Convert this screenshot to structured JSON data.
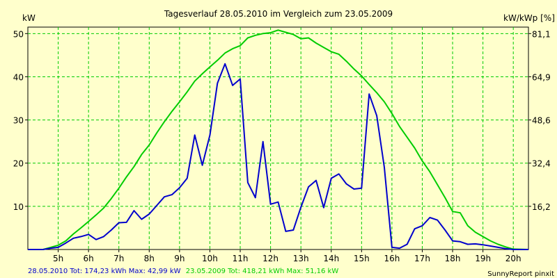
{
  "chart_data": {
    "type": "line",
    "title": "Tagesverlauf 28.05.2010 im Vergleich zum 23.05.2009",
    "ylabel_left": "kW",
    "ylabel_right": "kW/kWp [%]",
    "xlim": [
      4.0,
      20.5
    ],
    "ylim": [
      0,
      51.5
    ],
    "grid": true,
    "x_ticks": [
      "5h",
      "6h",
      "7h",
      "8h",
      "9h",
      "10h",
      "11h",
      "12h",
      "13h",
      "14h",
      "15h",
      "16h",
      "17h",
      "18h",
      "19h",
      "20h"
    ],
    "x_tick_values": [
      5,
      6,
      7,
      8,
      9,
      10,
      11,
      12,
      13,
      14,
      15,
      16,
      17,
      18,
      19,
      20
    ],
    "y_ticks_left": [
      "10",
      "20",
      "30",
      "40",
      "50"
    ],
    "y_tick_values_left": [
      10,
      20,
      30,
      40,
      50
    ],
    "y_ticks_right": [
      "16,2",
      "32,4",
      "48,6",
      "64,9",
      "81,1"
    ],
    "y_tick_values_right_kw": [
      10,
      20,
      30,
      40,
      50
    ],
    "series": [
      {
        "name": "28.05.2010",
        "color": "#0000CC",
        "x": [
          4.0,
          4.5,
          4.75,
          5.0,
          5.25,
          5.5,
          5.75,
          6.0,
          6.25,
          6.5,
          6.75,
          7.0,
          7.25,
          7.5,
          7.75,
          8.0,
          8.25,
          8.5,
          8.75,
          9.0,
          9.25,
          9.5,
          9.75,
          10.0,
          10.25,
          10.5,
          10.75,
          11.0,
          11.25,
          11.5,
          11.75,
          12.0,
          12.25,
          12.5,
          12.75,
          13.0,
          13.25,
          13.5,
          13.75,
          14.0,
          14.25,
          14.5,
          14.75,
          15.0,
          15.25,
          15.5,
          15.75,
          16.0,
          16.25,
          16.5,
          16.75,
          17.0,
          17.25,
          17.5,
          17.75,
          18.0,
          18.25,
          18.5,
          18.75,
          19.0,
          19.25,
          19.5,
          19.75,
          20.0,
          20.5
        ],
        "y": [
          0,
          0,
          0.3,
          0.5,
          1.5,
          2.6,
          3.0,
          3.5,
          2.3,
          3.0,
          4.5,
          6.2,
          6.3,
          9.0,
          7.0,
          8.2,
          10.2,
          12.2,
          12.7,
          14.3,
          16.5,
          26.5,
          19.5,
          26.5,
          38.5,
          43.0,
          38.0,
          39.5,
          15.5,
          12.0,
          25.0,
          10.5,
          11.0,
          4.2,
          4.5,
          9.8,
          14.5,
          16.0,
          9.7,
          16.5,
          17.5,
          15.2,
          14.0,
          14.2,
          36.0,
          31.0,
          19.0,
          0.5,
          0.3,
          1.2,
          4.8,
          5.5,
          7.4,
          6.8,
          4.5,
          2.0,
          1.8,
          1.2,
          1.3,
          1.1,
          0.8,
          0.5,
          0.2,
          0,
          0
        ]
      },
      {
        "name": "23.05.2009",
        "color": "#00CC00",
        "x": [
          4.0,
          4.5,
          4.75,
          5.0,
          5.25,
          5.5,
          5.75,
          6.0,
          6.25,
          6.5,
          6.75,
          7.0,
          7.25,
          7.5,
          7.75,
          8.0,
          8.25,
          8.5,
          8.75,
          9.0,
          9.25,
          9.5,
          9.75,
          10.0,
          10.25,
          10.5,
          10.75,
          11.0,
          11.25,
          11.5,
          11.75,
          12.0,
          12.25,
          12.5,
          12.75,
          13.0,
          13.25,
          13.5,
          13.75,
          14.0,
          14.25,
          14.5,
          14.75,
          15.0,
          15.25,
          15.5,
          15.75,
          16.0,
          16.25,
          16.5,
          16.75,
          17.0,
          17.25,
          17.5,
          17.75,
          18.0,
          18.25,
          18.5,
          18.75,
          19.0,
          19.25,
          19.5,
          19.75,
          20.0,
          20.5
        ],
        "y": [
          0,
          0,
          0.5,
          1.0,
          2.0,
          3.6,
          5.0,
          6.5,
          8.0,
          9.6,
          11.8,
          14.2,
          16.8,
          19.2,
          22.0,
          24.2,
          27.0,
          29.6,
          32.0,
          34.2,
          36.5,
          39.0,
          40.7,
          42.3,
          43.8,
          45.5,
          46.5,
          47.2,
          49.0,
          49.6,
          50.0,
          50.2,
          50.8,
          50.3,
          49.8,
          48.8,
          49.0,
          47.8,
          46.8,
          45.8,
          45.2,
          43.6,
          41.8,
          40.2,
          38.2,
          36.3,
          34.2,
          31.5,
          28.5,
          26.0,
          23.5,
          20.5,
          18.0,
          15.0,
          12.0,
          8.8,
          8.5,
          5.5,
          4.0,
          3.0,
          2.0,
          1.2,
          0.6,
          0.1,
          0
        ]
      }
    ],
    "footer": {
      "blue_text": "28.05.2010 Tot: 174,23 kWh Max: 42,99 kW",
      "green_text": "23.05.2009 Tot: 418,21 kWh Max: 51,16 kW",
      "credit": "SunnyReport pinxit"
    }
  }
}
